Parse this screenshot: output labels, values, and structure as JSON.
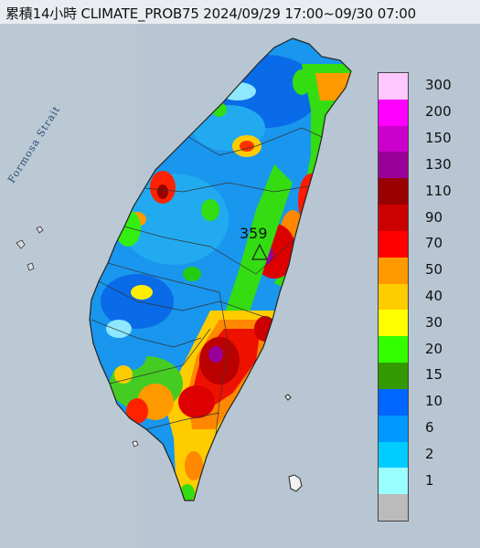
{
  "title": "累積14小時 CLIMATE_PROB75 2024/09/29 17:00~09/30 07:00",
  "strait_label": "Formosa Strait",
  "max_value_label": "359",
  "legend": [
    {
      "label": "300",
      "color": "#ffc8ff"
    },
    {
      "label": "200",
      "color": "#ff00ff"
    },
    {
      "label": "150",
      "color": "#cc00cc"
    },
    {
      "label": "130",
      "color": "#990099"
    },
    {
      "label": "110",
      "color": "#990000"
    },
    {
      "label": "90",
      "color": "#cc0000"
    },
    {
      "label": "70",
      "color": "#ff0000"
    },
    {
      "label": "50",
      "color": "#ff9900"
    },
    {
      "label": "40",
      "color": "#ffcc00"
    },
    {
      "label": "30",
      "color": "#ffff00"
    },
    {
      "label": "20",
      "color": "#33ff00"
    },
    {
      "label": "15",
      "color": "#339900"
    },
    {
      "label": "10",
      "color": "#0066ff"
    },
    {
      "label": "6",
      "color": "#0099ff"
    },
    {
      "label": "2",
      "color": "#00ccff"
    },
    {
      "label": "1",
      "color": "#99ffff"
    },
    {
      "label": "",
      "color": "#bbbbbb"
    }
  ]
}
